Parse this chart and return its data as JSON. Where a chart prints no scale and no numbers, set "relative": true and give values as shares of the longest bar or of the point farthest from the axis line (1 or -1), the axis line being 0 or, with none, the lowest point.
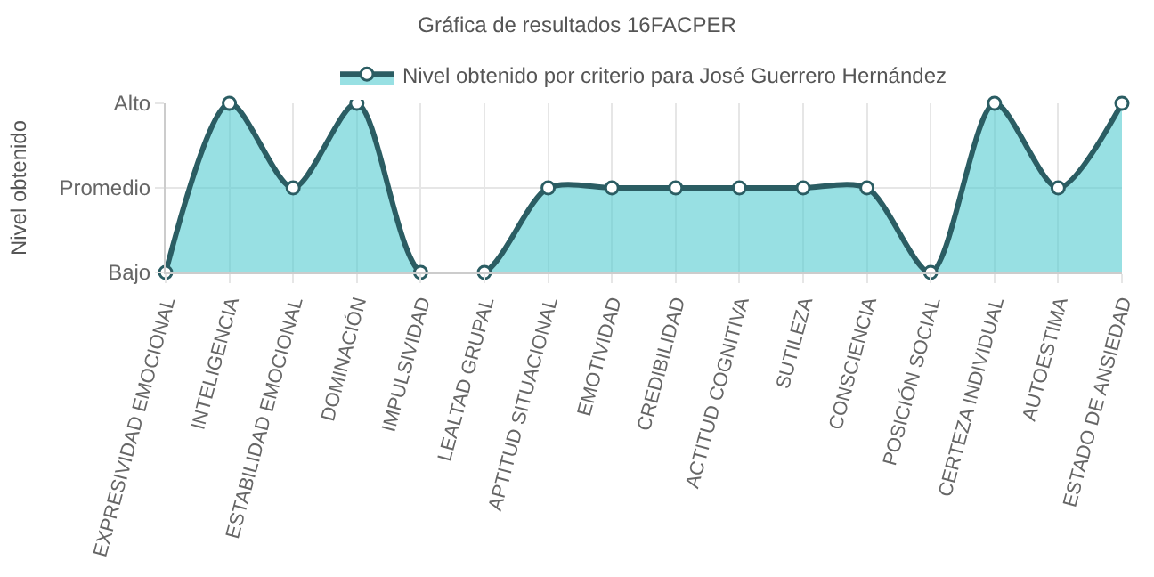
{
  "chart_data": {
    "type": "area",
    "title": "Gráfica de resultados 16FACPER",
    "ylabel": "Nivel obtenido",
    "categories": [
      "EXPRESIVIDAD EMOCIONAL",
      "INTELIGENCIA",
      "ESTABILIDAD EMOCIONAL",
      "DOMINACIÓN",
      "IMPULSIVIDAD",
      "LEALTAD GRUPAL",
      "APTITUD SITUACIONAL",
      "EMOTIVIDAD",
      "CREDIBILIDAD",
      "ACTITUD COGNITIVA",
      "SUTILEZA",
      "CONSCIENCIA",
      "POSICIÓN SOCIAL",
      "CERTEZA INDIVIDUAL",
      "AUTOESTIMA",
      "ESTADO DE ANSIEDAD"
    ],
    "series": [
      {
        "name": "Nivel obtenido por criterio para José Guerrero Hernández",
        "color": "#2b5d63",
        "values": [
          0,
          1,
          0.5,
          1,
          0,
          0,
          0.5,
          0.5,
          0.5,
          0.5,
          0.5,
          0.5,
          0,
          1,
          0.5,
          1
        ]
      }
    ],
    "relative": true,
    "y_categories": [
      "Alto",
      "Promedio",
      "Bajo"
    ],
    "grid": true,
    "legend": "top",
    "marker": "circle",
    "line_style": "solid"
  }
}
